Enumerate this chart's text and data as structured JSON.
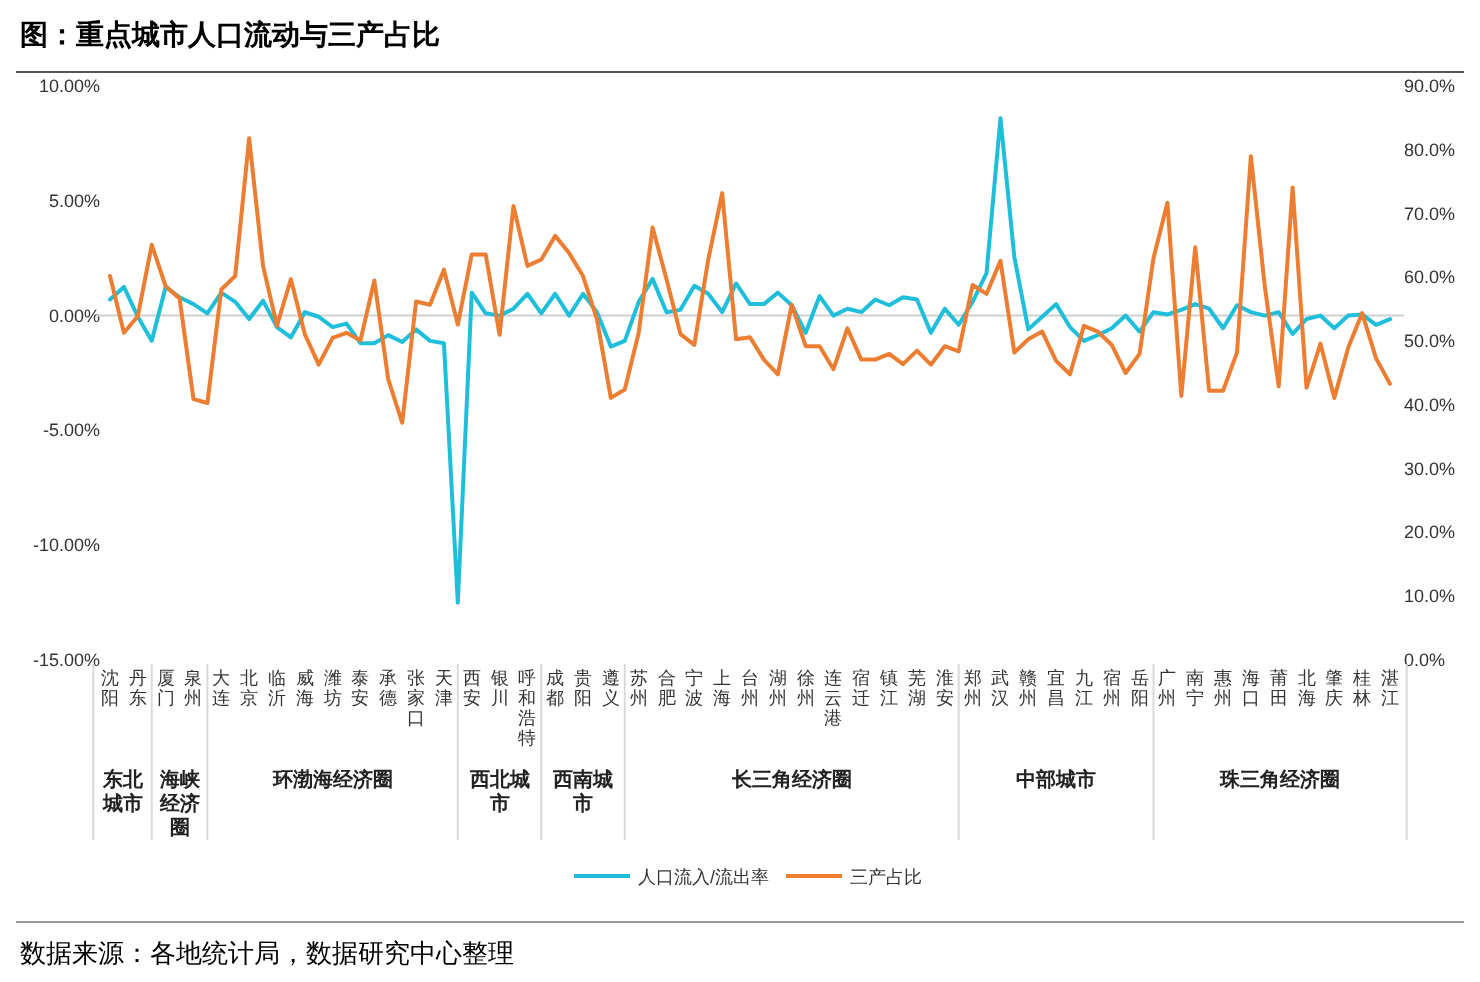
{
  "chart_data": {
    "type": "line",
    "title": "图：重点城市人口流动与三产占比",
    "categories": [
      "沈阳",
      null,
      "丹东",
      null,
      "厦门",
      null,
      "泉州",
      null,
      "大连",
      null,
      "北京",
      null,
      "临沂",
      null,
      "威海",
      null,
      "潍坊",
      null,
      "泰安",
      null,
      "承德",
      null,
      "张家口",
      null,
      "天津",
      null,
      "西安",
      null,
      "银川",
      null,
      "呼和浩特",
      null,
      "成都",
      null,
      "贵阳",
      null,
      "遵义",
      null,
      "苏州",
      null,
      "合肥",
      null,
      "宁波",
      null,
      "上海",
      null,
      "台州",
      null,
      "湖州",
      null,
      "徐州",
      null,
      "连云港",
      null,
      "宿迁",
      null,
      "镇江",
      null,
      "芜湖",
      null,
      "淮安",
      null,
      "郑州",
      null,
      "武汉",
      null,
      "赣州",
      null,
      "宜昌",
      null,
      "九江",
      null,
      "宿州",
      null,
      "岳阳",
      null,
      "广州",
      null,
      "南宁",
      null,
      "惠州",
      null,
      "海口",
      null,
      "莆田",
      null,
      "北海",
      null,
      "肇庆",
      null,
      "桂林",
      null,
      "湛江"
    ],
    "series": [
      {
        "name": "人口流入/流出率",
        "color": "#1fbfdc",
        "values": [
          0.7,
          1.25,
          -0.05,
          -1.1,
          1.25,
          0.8,
          0.5,
          0.1,
          1.0,
          0.6,
          -0.15,
          0.65,
          -0.5,
          -0.95,
          0.15,
          -0.05,
          -0.5,
          -0.35,
          -1.2,
          -1.2,
          -0.85,
          -1.15,
          -0.6,
          -1.1,
          -1.2,
          -12.5,
          1.0,
          0.1,
          0.0,
          0.3,
          0.95,
          0.1,
          0.95,
          0.0,
          0.95,
          0.15,
          -1.35,
          -1.1,
          0.6,
          1.6,
          0.15,
          0.25,
          1.3,
          0.95,
          0.15,
          1.4,
          0.5,
          0.5,
          1.0,
          0.45,
          -0.75,
          0.85,
          0.0,
          0.3,
          0.15,
          0.7,
          0.45,
          0.8,
          0.7,
          -0.75,
          0.3,
          -0.4,
          0.6,
          1.85,
          8.6,
          2.55,
          -0.6,
          -0.05,
          0.5,
          -0.5,
          -1.1,
          -0.85,
          -0.55,
          0.0,
          -0.7,
          0.15,
          0.05,
          0.25,
          0.5,
          0.3,
          -0.55,
          0.45,
          0.15,
          0.0,
          0.15,
          -0.8,
          -0.15,
          0.0,
          -0.55,
          0.0,
          0.05,
          -0.4,
          -0.15
        ]
      },
      {
        "name": "三产占比",
        "color": "#ed7d31",
        "axis": "y2",
        "values": [
          60.2,
          51.3,
          53.9,
          65.1,
          58.6,
          56.7,
          40.9,
          40.3,
          58.1,
          60.2,
          81.8,
          61.8,
          52.4,
          59.7,
          51.1,
          46.3,
          50.5,
          51.3,
          50.1,
          59.5,
          44.0,
          37.2,
          56.2,
          55.7,
          61.2,
          52.6,
          63.6,
          63.6,
          51.0,
          71.2,
          61.8,
          62.8,
          66.5,
          63.8,
          60.2,
          53.4,
          41.1,
          42.4,
          51.3,
          67.8,
          59.7,
          51.1,
          49.4,
          62.8,
          73.2,
          50.3,
          50.6,
          47.1,
          44.8,
          55.7,
          49.2,
          49.2,
          45.6,
          52.0,
          47.1,
          47.1,
          48.0,
          46.4,
          48.5,
          46.3,
          49.2,
          48.4,
          58.8,
          57.4,
          62.6,
          48.2,
          50.3,
          51.5,
          46.9,
          44.8,
          52.4,
          51.5,
          49.4,
          45.0,
          48.0,
          63.0,
          71.7,
          41.4,
          64.7,
          42.2,
          42.2,
          48.2,
          79.0,
          58.6,
          42.9,
          74.1,
          42.7,
          49.6,
          41.1,
          49.0,
          54.4,
          47.3,
          43.3
        ]
      }
    ],
    "ylim": [
      -15,
      10
    ],
    "yticks": [
      {
        "value": -15,
        "label": "-15.00%"
      },
      {
        "value": -10,
        "label": "-10.00%"
      },
      {
        "value": -5,
        "label": "-5.00%"
      },
      {
        "value": 0,
        "label": "0.00%"
      },
      {
        "value": 5,
        "label": "5.00%"
      },
      {
        "value": 10,
        "label": "10.00%"
      }
    ],
    "y2lim": [
      0,
      90
    ],
    "y2ticks": [
      {
        "value": 0,
        "label": "0.0%"
      },
      {
        "value": 10,
        "label": "10.0%"
      },
      {
        "value": 20,
        "label": "20.0%"
      },
      {
        "value": 30,
        "label": "30.0%"
      },
      {
        "value": 40,
        "label": "40.0%"
      },
      {
        "value": 50,
        "label": "50.0%"
      },
      {
        "value": 60,
        "label": "60.0%"
      },
      {
        "value": 70,
        "label": "70.0%"
      },
      {
        "value": 80,
        "label": "80.0%"
      },
      {
        "value": 90,
        "label": "90.0%"
      }
    ],
    "legend": "bottom",
    "annotations": [
      "东北城市",
      "海峡经济圈",
      "环渤海经济圈",
      "西北城市",
      "西南城市",
      "长三角经济圈",
      "中部城市",
      "珠三角经济圈",
      "数据来源：各地统计局，数据研究中心整理"
    ]
  }
}
